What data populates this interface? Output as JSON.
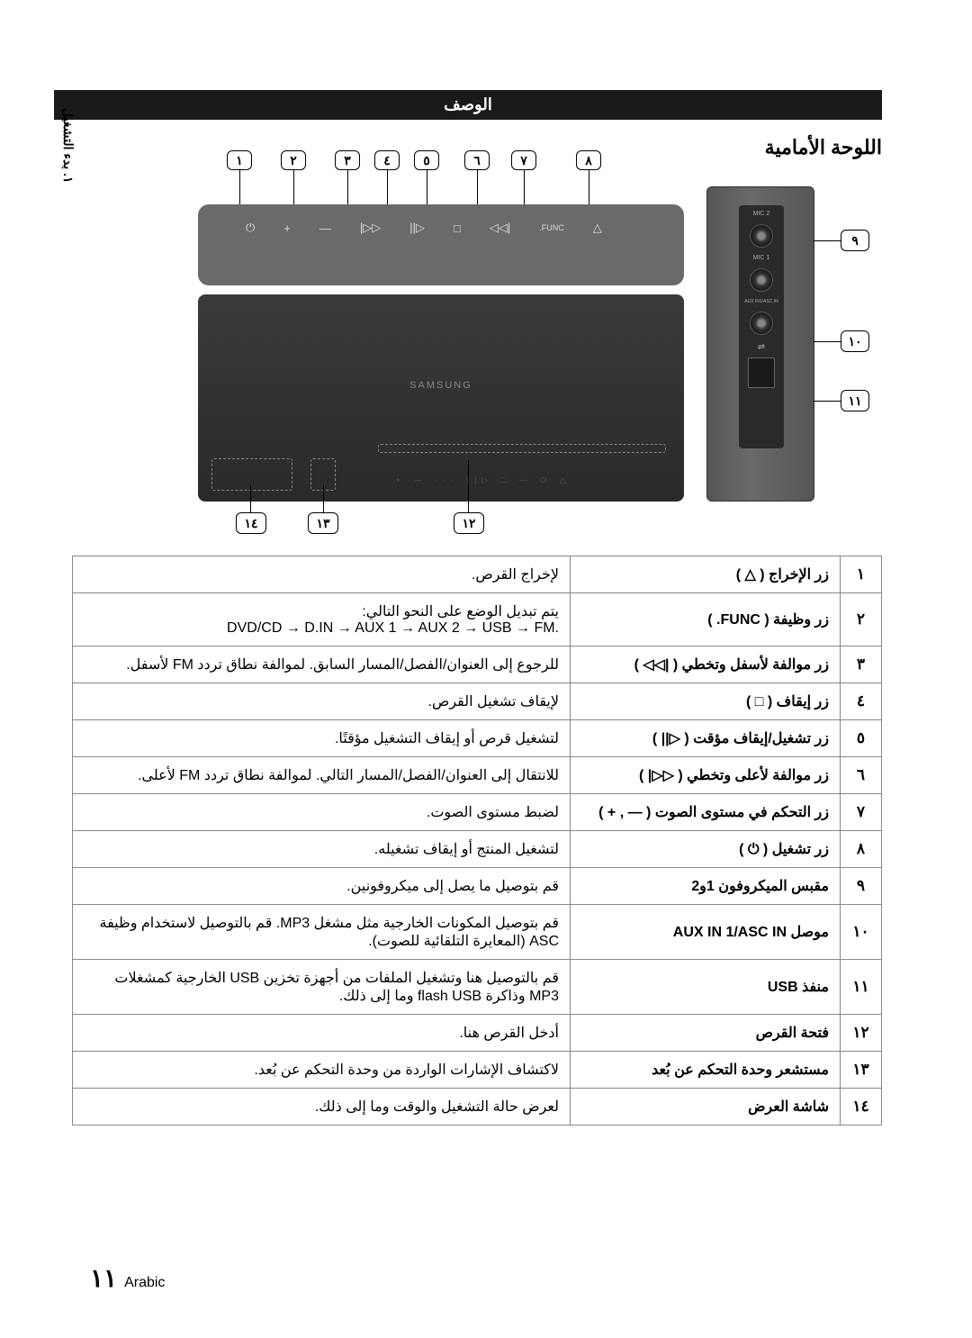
{
  "side_tab": "١. بدء التشغيل",
  "header": "الوصف",
  "section_title": "اللوحة الأمامية",
  "colors": {
    "header_bg": "#1a1a1a",
    "border": "#888888",
    "device_bg": "#6a6a6a"
  },
  "diagram": {
    "top_callouts": [
      "١",
      "٢",
      "٣",
      "٤",
      "٥",
      "٦",
      "٧",
      "٨"
    ],
    "top_button_icons": [
      "△",
      "FUNC.",
      "|◁◁",
      "□",
      "▷||",
      "▷▷|",
      "—",
      "+",
      "⏻"
    ],
    "bottom_callouts": [
      "١٤",
      "١٣",
      "١٢"
    ],
    "right_callouts": [
      "٩",
      "١٠",
      "١١"
    ],
    "side_labels": {
      "mic2": "MIC 2",
      "mic1": "MIC 1",
      "aux": "AUX IN1/ASC IN"
    },
    "samsung": "SAMSUNG"
  },
  "table_rows": [
    {
      "num": "١",
      "label": "زر الإخراج ( △ )",
      "desc": "لإخراج القرص."
    },
    {
      "num": "٢",
      "label": "زر وظيفة ( FUNC. )",
      "desc": "يتم تبديل الوضع على النحو التالي:\n.DVD/CD → D.IN → AUX 1 → AUX 2 → USB → FM"
    },
    {
      "num": "٣",
      "label": "زر موالفة لأسفل وتخطي ( |◁◁ )",
      "desc": "للرجوع إلى العنوان/الفصل/المسار السابق. لموالفة نطاق تردد FM لأسفل."
    },
    {
      "num": "٤",
      "label": "زر إيقاف ( □ )",
      "desc": "لإيقاف تشغيل القرص."
    },
    {
      "num": "٥",
      "label": "زر تشغيل/إيقاف مؤقت ( ▷|| )",
      "desc": "لتشغيل قرص أو إيقاف التشغيل مؤقتًا."
    },
    {
      "num": "٦",
      "label": "زر موالفة لأعلى وتخطي ( ▷▷| )",
      "desc": "للانتقال إلى العنوان/الفصل/المسار التالي. لموالفة نطاق تردد FM لأعلى."
    },
    {
      "num": "٧",
      "label": "زر التحكم في مستوى الصوت ( — , + )",
      "desc": "لضبط مستوى الصوت."
    },
    {
      "num": "٨",
      "label": "زر تشغيل ( ⏻ )",
      "desc": "لتشغيل المنتج أو إيقاف تشغيله."
    },
    {
      "num": "٩",
      "label": "مقبس الميكروفون 1و2",
      "desc": "قم بتوصيل ما يصل إلى ميكروفونين."
    },
    {
      "num": "١٠",
      "label": "موصل AUX IN 1/ASC IN",
      "desc": "قم بتوصيل المكونات الخارجية مثل مشغل MP3. قم بالتوصيل لاستخدام وظيفة ASC (المعايرة التلقائية للصوت)."
    },
    {
      "num": "١١",
      "label": "منفذ USB",
      "desc": "قم بالتوصيل هنا وتشغيل الملفات من أجهزة تخزين USB الخارجية كمشغلات MP3 وذاكرة flash USB وما إلى ذلك."
    },
    {
      "num": "١٢",
      "label": "فتحة القرص",
      "desc": "أدخل القرص هنا."
    },
    {
      "num": "١٣",
      "label": "مستشعر وحدة التحكم عن بُعد",
      "desc": "لاكتشاف الإشارات الواردة من وحدة التحكم عن بُعد."
    },
    {
      "num": "١٤",
      "label": "شاشة العرض",
      "desc": "لعرض حالة التشغيل والوقت وما إلى ذلك."
    }
  ],
  "footer": {
    "page": "١١",
    "lang": "Arabic"
  }
}
